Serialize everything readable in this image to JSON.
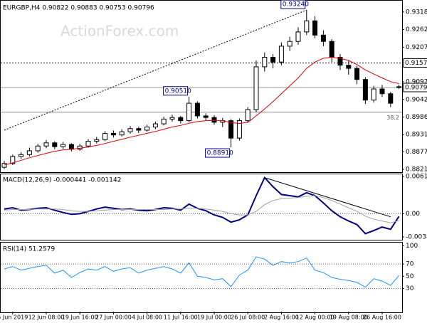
{
  "watermark": "ActionForex.com",
  "chart_data": [
    {
      "type": "candlestick",
      "title": "EURGBP,H4  0.90822 0.90883 0.90753 0.90796",
      "categories": [
        null,
        "5 Jun 2019",
        null,
        null,
        null,
        "12 Jun 08:00",
        null,
        null,
        null,
        "19 Jun 16:00",
        null,
        null,
        null,
        "27 Jun 00:00",
        null,
        null,
        null,
        "4 Jul 08:00",
        null,
        null,
        null,
        "11 Jul 16:00",
        null,
        null,
        null,
        "19 Jul 00:00",
        null,
        null,
        null,
        "26 Jul 08:00",
        null,
        null,
        null,
        "2 Aug 16:00",
        null,
        null,
        null,
        "12 Aug 00:00",
        null,
        null,
        null,
        "19 Aug 08:00",
        null,
        null,
        null,
        "26 Aug 16:00",
        null,
        null
      ],
      "open": [
        0.8828,
        0.884,
        0.8862,
        0.8868,
        0.888,
        0.8895,
        0.8905,
        0.8893,
        0.89,
        0.8885,
        0.8895,
        0.891,
        0.8915,
        0.8935,
        0.893,
        0.894,
        0.895,
        0.8945,
        0.8955,
        0.8965,
        0.898,
        0.8985,
        0.8975,
        0.903,
        0.899,
        0.8985,
        0.897,
        0.8975,
        0.892,
        0.8975,
        0.901,
        0.9145,
        0.9175,
        0.916,
        0.921,
        0.9225,
        0.9255,
        0.929,
        0.9245,
        0.9225,
        0.9175,
        0.915,
        0.914,
        0.9105,
        0.904,
        0.9075,
        0.906,
        0.90822
      ],
      "high": [
        0.8848,
        0.8868,
        0.8876,
        0.889,
        0.8902,
        0.8914,
        0.891,
        0.8908,
        0.8904,
        0.8902,
        0.8917,
        0.8924,
        0.8942,
        0.8944,
        0.8948,
        0.8958,
        0.8956,
        0.8962,
        0.8972,
        0.8988,
        0.8994,
        0.899,
        0.9051,
        0.9036,
        0.8998,
        0.8992,
        0.8984,
        0.898,
        0.8982,
        0.9018,
        0.9165,
        0.919,
        0.9185,
        0.9222,
        0.924,
        0.927,
        0.9324,
        0.9305,
        0.926,
        0.9232,
        0.9185,
        0.9165,
        0.9148,
        0.9112,
        0.9085,
        0.9088,
        0.9066,
        0.90883
      ],
      "low": [
        0.8822,
        0.8835,
        0.8855,
        0.8862,
        0.8874,
        0.8888,
        0.8885,
        0.8886,
        0.8878,
        0.888,
        0.889,
        0.8903,
        0.891,
        0.8922,
        0.8925,
        0.8934,
        0.8936,
        0.894,
        0.8948,
        0.896,
        0.8972,
        0.8966,
        0.897,
        0.8982,
        0.8975,
        0.8962,
        0.8955,
        0.8891,
        0.8912,
        0.8968,
        0.9002,
        0.913,
        0.914,
        0.915,
        0.9195,
        0.9215,
        0.9245,
        0.9235,
        0.921,
        0.916,
        0.9135,
        0.912,
        0.909,
        0.9028,
        0.9032,
        0.905,
        0.9018,
        0.90753
      ],
      "close": [
        0.884,
        0.8862,
        0.8868,
        0.888,
        0.8895,
        0.8905,
        0.8893,
        0.89,
        0.8885,
        0.8895,
        0.891,
        0.8915,
        0.8935,
        0.893,
        0.894,
        0.895,
        0.8945,
        0.8955,
        0.8965,
        0.898,
        0.8985,
        0.8975,
        0.903,
        0.899,
        0.8985,
        0.897,
        0.8975,
        0.892,
        0.8975,
        0.901,
        0.9145,
        0.9175,
        0.916,
        0.921,
        0.9225,
        0.9255,
        0.929,
        0.9245,
        0.9225,
        0.9175,
        0.915,
        0.914,
        0.9105,
        0.904,
        0.9075,
        0.906,
        0.903,
        0.90796
      ],
      "color": "#000000",
      "ma": {
        "color": "#e00000",
        "values": [
          0.8835,
          0.8842,
          0.885,
          0.8858,
          0.8865,
          0.8872,
          0.8878,
          0.8883,
          0.8885,
          0.8888,
          0.8892,
          0.8897,
          0.8903,
          0.891,
          0.8916,
          0.8923,
          0.8929,
          0.8935,
          0.8941,
          0.8948,
          0.8955,
          0.896,
          0.8967,
          0.8972,
          0.8975,
          0.8976,
          0.8975,
          0.8969,
          0.8966,
          0.897,
          0.899,
          0.9012,
          0.9035,
          0.906,
          0.9085,
          0.911,
          0.914,
          0.916,
          0.9172,
          0.9175,
          0.9172,
          0.9165,
          0.9152,
          0.9135,
          0.9122,
          0.911,
          0.9098,
          0.9092
        ]
      },
      "ylim": [
        0.8817,
        0.9349
      ],
      "yticks": [
        {
          "value": 0.9318,
          "label": "0.93180"
        },
        0.92625,
        {
          "value": 0.9207,
          "label": "0.92070"
        },
        0.90975,
        {
          "value": 0.9042,
          "label": "0.90420"
        },
        0.89865,
        {
          "value": 0.8931,
          "label": "0.89310"
        },
        {
          "value": 0.8877,
          "label": "0.88770"
        },
        0.88215
      ],
      "hlines": [
        {
          "value": 0.9157,
          "label": "0.91570",
          "style": "dotted"
        },
        {
          "value": 0.90796,
          "label": "0.90796",
          "style": "solid"
        }
      ],
      "fibo": {
        "value": 0.9002,
        "label": "38.2"
      },
      "annotations": [
        {
          "index": 36,
          "value": 0.9324,
          "label": "0.93240",
          "position": "above"
        },
        {
          "index": 22,
          "value": 0.9051,
          "label": "0.90510",
          "position": "above"
        },
        {
          "index": 27,
          "value": 0.8891,
          "label": "0.88910",
          "position": "below"
        }
      ],
      "trendline": {
        "start": [
          0,
          0.8945
        ],
        "end": [
          36,
          0.9324
        ]
      }
    },
    {
      "type": "line",
      "title": "MACD(12,26,9) -0.000441 -0.001142",
      "series": [
        {
          "color": "#000080",
          "values": [
            0.0008,
            0.001,
            0.0006,
            0.0007,
            0.0009,
            0.001,
            0.0006,
            0.0002,
            -0.0001,
            0,
            0.0004,
            0.0008,
            0.0011,
            0.0009,
            0.0007,
            0.0008,
            0.0006,
            0.0005,
            0.0007,
            0.001,
            0.0009,
            0.0006,
            0.0016,
            0.0009,
            0.0005,
            -0.0002,
            -0.0006,
            -0.0014,
            -0.001,
            -0.0002,
            0.003,
            0.006,
            0.0045,
            0.0032,
            0.003,
            0.0028,
            0.0035,
            0.003,
            0.0018,
            0.0005,
            -0.0005,
            -0.0012,
            -0.0018,
            -0.0033,
            -0.0028,
            -0.0022,
            -0.0026,
            -0.000441
          ]
        },
        {
          "color": "#a0a0a0",
          "values": [
            0.0006,
            0.0007,
            0.0007,
            0.0007,
            0.0008,
            0.0008,
            0.0008,
            0.0007,
            0.0005,
            0.0004,
            0.0004,
            0.0005,
            0.0006,
            0.0007,
            0.0007,
            0.0007,
            0.0007,
            0.0007,
            0.0007,
            0.0007,
            0.0008,
            0.0008,
            0.0009,
            0.0009,
            0.0008,
            0.0006,
            0.0004,
            0,
            -0.0002,
            -0.0002,
            0.0004,
            0.0015,
            0.0022,
            0.0025,
            0.0026,
            0.0027,
            0.0029,
            0.003,
            0.0027,
            0.0022,
            0.0016,
            0.001,
            0.0004,
            -0.0004,
            -0.0009,
            -0.0012,
            -0.0015,
            -0.001142
          ]
        }
      ],
      "ylim": [
        -0.00432,
        0.00655
      ],
      "yticks": [
        0.006195,
        {
          "value": 0,
          "label": "0.00"
        },
        -0.003851
      ],
      "levels": [
        0
      ],
      "trendline": {
        "start": [
          31,
          0.006
        ],
        "end": [
          46,
          -0.0005
        ]
      }
    },
    {
      "type": "line",
      "title": "RSI(14) 51.2579",
      "series": [
        {
          "color": "#1e90ff",
          "values": [
            62,
            66,
            60,
            63,
            66,
            68,
            55,
            60,
            48,
            56,
            62,
            60,
            66,
            58,
            62,
            64,
            55,
            60,
            63,
            66,
            62,
            55,
            72,
            50,
            48,
            44,
            46,
            33,
            52,
            60,
            82,
            78,
            68,
            74,
            72,
            74,
            80,
            60,
            56,
            48,
            45,
            43,
            40,
            32,
            46,
            42,
            35,
            51.2579
          ]
        }
      ],
      "ylim": [
        -8,
        104
      ],
      "yticks": [
        100,
        70,
        50,
        30
      ],
      "levels": [
        70,
        30
      ]
    }
  ]
}
